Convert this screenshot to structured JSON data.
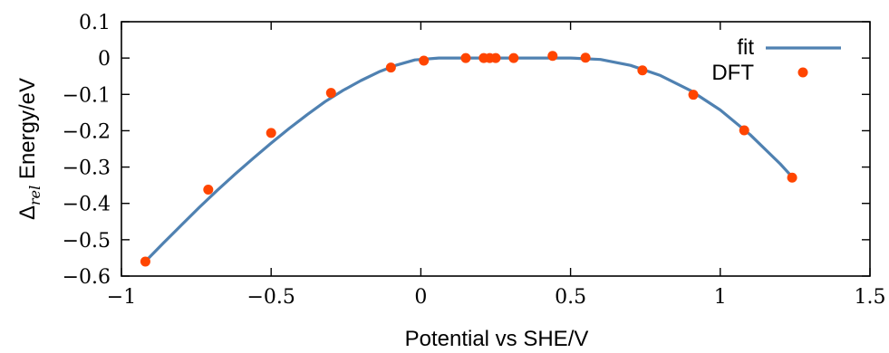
{
  "chart_data": {
    "type": "scatter",
    "xlabel": "Potential vs SHE/V",
    "ylabel_symbol": "Δ",
    "ylabel_subscript": "rel",
    "ylabel_rest": " Energy/eV",
    "xlim": [
      -1,
      1.5
    ],
    "ylim": [
      -0.6,
      0.1
    ],
    "x_ticks": [
      {
        "value": -1,
        "label": "−1"
      },
      {
        "value": -0.5,
        "label": "−0.5"
      },
      {
        "value": 0,
        "label": "0"
      },
      {
        "value": 0.5,
        "label": "0.5"
      },
      {
        "value": 1,
        "label": "1"
      },
      {
        "value": 1.5,
        "label": "1.5"
      }
    ],
    "y_ticks": [
      {
        "value": 0.1,
        "label": "0.1"
      },
      {
        "value": 0,
        "label": "0"
      },
      {
        "value": -0.1,
        "label": "−0.1"
      },
      {
        "value": -0.2,
        "label": "−0.2"
      },
      {
        "value": -0.3,
        "label": "−0.3"
      },
      {
        "value": -0.4,
        "label": "−0.4"
      },
      {
        "value": -0.5,
        "label": "−0.5"
      },
      {
        "value": -0.6,
        "label": "−0.6"
      }
    ],
    "grid": false,
    "legend_position": "top-right",
    "series": [
      {
        "name": "fit",
        "kind": "line",
        "color": "#4f81b1",
        "points": [
          [
            -0.92,
            -0.56
          ],
          [
            -0.86,
            -0.509
          ],
          [
            -0.8,
            -0.46
          ],
          [
            -0.74,
            -0.411
          ],
          [
            -0.68,
            -0.364
          ],
          [
            -0.62,
            -0.319
          ],
          [
            -0.56,
            -0.276
          ],
          [
            -0.5,
            -0.234
          ],
          [
            -0.44,
            -0.194
          ],
          [
            -0.38,
            -0.156
          ],
          [
            -0.32,
            -0.12
          ],
          [
            -0.26,
            -0.089
          ],
          [
            -0.2,
            -0.062
          ],
          [
            -0.14,
            -0.038
          ],
          [
            -0.08,
            -0.019
          ],
          [
            -0.02,
            -0.005
          ],
          [
            0.06,
            0.0
          ],
          [
            0.2,
            0.0
          ],
          [
            0.4,
            0.0
          ],
          [
            0.5,
            0.0
          ],
          [
            0.6,
            -0.004
          ],
          [
            0.7,
            -0.02
          ],
          [
            0.8,
            -0.048
          ],
          [
            0.9,
            -0.089
          ],
          [
            1.0,
            -0.143
          ],
          [
            1.1,
            -0.211
          ],
          [
            1.2,
            -0.291
          ],
          [
            1.24,
            -0.327
          ]
        ]
      },
      {
        "name": "DFT",
        "kind": "scatter",
        "color": "#ff4500",
        "points": [
          [
            -0.92,
            -0.56
          ],
          [
            -0.71,
            -0.362
          ],
          [
            -0.5,
            -0.206
          ],
          [
            -0.3,
            -0.096
          ],
          [
            -0.1,
            -0.026
          ],
          [
            0.01,
            -0.007
          ],
          [
            0.15,
            0.0
          ],
          [
            0.21,
            0.0
          ],
          [
            0.23,
            0.0
          ],
          [
            0.25,
            0.0
          ],
          [
            0.31,
            0.0
          ],
          [
            0.44,
            0.006
          ],
          [
            0.55,
            0.001
          ],
          [
            0.74,
            -0.034
          ],
          [
            0.91,
            -0.101
          ],
          [
            1.08,
            -0.199
          ],
          [
            1.24,
            -0.329
          ]
        ]
      }
    ]
  }
}
